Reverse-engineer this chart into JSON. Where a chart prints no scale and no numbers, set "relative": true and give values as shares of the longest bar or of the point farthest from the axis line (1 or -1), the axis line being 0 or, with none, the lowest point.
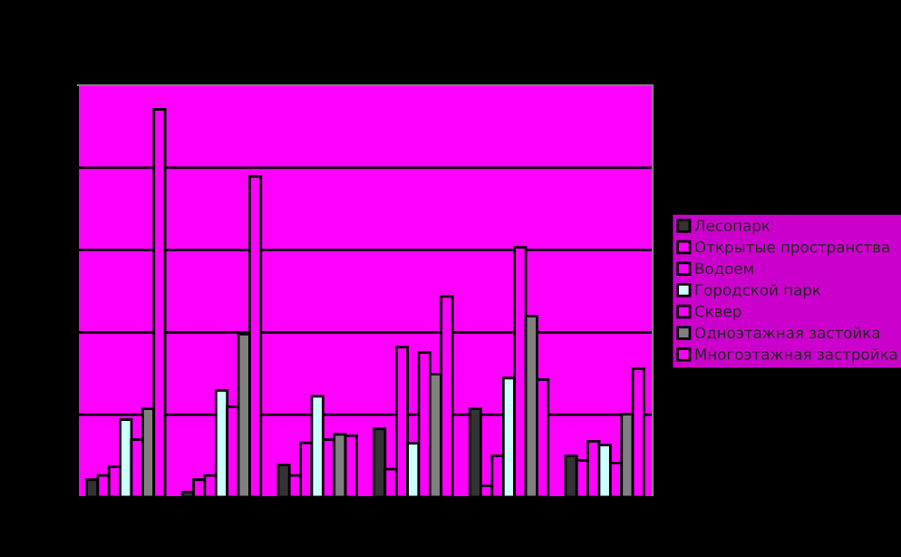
{
  "chart_data": {
    "type": "bar",
    "relative": true,
    "categories": [
      null,
      null,
      null,
      null,
      null,
      null
    ],
    "grid": "y",
    "legend": "right",
    "series": [
      {
        "name": "Лесопарк",
        "color": "#333333",
        "values": [
          0.045,
          0.013,
          0.083,
          0.176,
          0.228,
          0.106
        ]
      },
      {
        "name": "Открытые пространства",
        "color": "#ff00ff",
        "values": [
          0.056,
          0.045,
          0.056,
          0.072,
          0.029,
          0.095
        ]
      },
      {
        "name": "Водоем",
        "color": "#ff00ff",
        "values": [
          0.078,
          0.056,
          0.14,
          0.387,
          0.106,
          0.144
        ]
      },
      {
        "name": "Городской парк",
        "color": "#ccffff",
        "values": [
          0.2,
          0.275,
          0.26,
          0.139,
          0.307,
          0.134
        ]
      },
      {
        "name": "Сквер",
        "color": "#ff00ff",
        "values": [
          0.148,
          0.233,
          0.148,
          0.373,
          0.644,
          0.088
        ]
      },
      {
        "name": "Одноэтажная застойка",
        "color": "#808080",
        "values": [
          0.228,
          0.42,
          0.162,
          0.317,
          0.467,
          0.214
        ]
      },
      {
        "name": "Многоэтажная застройка",
        "color": "#ff00ff",
        "values": [
          1,
          0.827,
          0.158,
          0.518,
          0.303,
          0.331
        ]
      }
    ]
  }
}
